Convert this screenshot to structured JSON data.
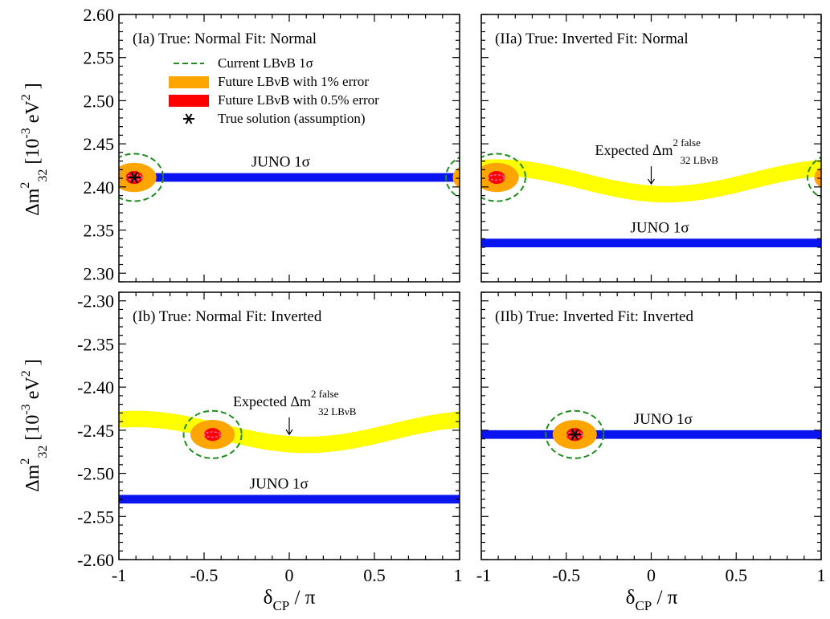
{
  "chart_data": {
    "type": "scatter",
    "x_axis": {
      "label_main": "δ",
      "label_sub": "CP",
      "label_tail": " / π",
      "range": [
        -1,
        1
      ],
      "ticks": [
        -1,
        -0.5,
        0,
        0.5,
        1
      ],
      "tick_labels_left": [
        "-1",
        "-0.5",
        "0",
        "0.5",
        "1"
      ],
      "tick_labels_right": [
        "-1",
        "-0.5",
        "0",
        "0.5",
        "1"
      ]
    },
    "y_axis_top": {
      "label_main": "Δm",
      "label_sup": "2",
      "label_sub": "32",
      "label_unit": " [10",
      "label_unit_sup": "-3",
      "label_unit_tail": " eV",
      "label_unit_sup2": "2",
      "label_close": " ]",
      "range": [
        2.29,
        2.6
      ],
      "ticks": [
        2.3,
        2.35,
        2.4,
        2.45,
        2.5,
        2.55,
        2.6
      ],
      "tick_labels": [
        "2.30",
        "2.35",
        "2.40",
        "2.45",
        "2.50",
        "2.55",
        "2.60"
      ]
    },
    "y_axis_bottom": {
      "label_main": "Δm",
      "label_sup": "2",
      "label_sub": "32",
      "label_unit": " [10",
      "label_unit_sup": "-3",
      "label_unit_tail": " eV",
      "label_unit_sup2": "2",
      "label_close": " ]",
      "range": [
        -2.6,
        -2.29
      ],
      "ticks": [
        -2.6,
        -2.55,
        -2.5,
        -2.45,
        -2.4,
        -2.35,
        -2.3
      ],
      "tick_labels": [
        "-2.60",
        "-2.55",
        "-2.50",
        "-2.45",
        "-2.40",
        "-2.35",
        "-2.30"
      ]
    },
    "legend": {
      "placement": "top-left of panel Ia",
      "items": [
        {
          "label": "Current LBνB 1σ",
          "style": "dashed-line",
          "color": "#1e8c1e"
        },
        {
          "label": "Future LBνB with 1% error",
          "style": "fill",
          "color": "#ffa500"
        },
        {
          "label": "Future LBνB with 0.5% error",
          "style": "fill",
          "color": "#ff0000"
        },
        {
          "label": "True solution (assumption)",
          "style": "asterisk",
          "color": "#000000"
        }
      ]
    },
    "colors": {
      "juno": "#0a14f0",
      "expected_false": "#ffff00",
      "current_1sigma": "#1e8c1e",
      "future_1pct": "#ffa500",
      "future_05pct": "#ff0000",
      "inner_dash": "#ff80c0"
    },
    "panels": [
      {
        "id": "Ia",
        "title": "(Ia) True: Normal  Fit: Normal",
        "juno_label": "JUNO 1σ",
        "juno_center": 2.411,
        "juno_halfwidth": 0.005,
        "true_point": [
          -0.91,
          2.411
        ],
        "show_true_marker": true,
        "ellipses": [
          {
            "x": -0.91,
            "y": 2.411,
            "rx": 0.05,
            "ry": 0.0075,
            "kind": "future_05pct"
          },
          {
            "x": -0.91,
            "y": 2.411,
            "rx": 0.13,
            "ry": 0.017,
            "kind": "future_1pct"
          },
          {
            "x": -0.91,
            "y": 2.411,
            "rx": 0.17,
            "ry": 0.0275,
            "kind": "current_1sigma"
          }
        ],
        "wrap_copy": true,
        "expected_band": null
      },
      {
        "id": "IIa",
        "title": "(IIa) True: Inverted  Fit: Normal",
        "juno_label": "JUNO 1σ",
        "juno_center": 2.335,
        "juno_halfwidth": 0.005,
        "true_point": [
          -0.91,
          2.411
        ],
        "show_true_marker": false,
        "ellipses": [
          {
            "x": -0.91,
            "y": 2.411,
            "rx": 0.05,
            "ry": 0.0075,
            "kind": "future_05pct"
          },
          {
            "x": -0.91,
            "y": 2.411,
            "rx": 0.13,
            "ry": 0.017,
            "kind": "future_1pct"
          },
          {
            "x": -0.91,
            "y": 2.411,
            "rx": 0.17,
            "ry": 0.0275,
            "kind": "current_1sigma"
          }
        ],
        "wrap_copy": true,
        "expected_band": {
          "mean": 2.407,
          "amplitude": 0.0155,
          "phase_x": -0.91,
          "halfwidth": 0.0095,
          "label_main": "Expected Δm",
          "label_sup": "2 false",
          "label_sub": "32 LBνB",
          "arrow_x": 0.0,
          "label_y": 2.437
        }
      },
      {
        "id": "Ib",
        "title": "(Ib) True: Normal  Fit: Inverted",
        "juno_label": "JUNO 1σ",
        "juno_center": -2.53,
        "juno_halfwidth": 0.005,
        "true_point": [
          -0.45,
          -2.455
        ],
        "show_true_marker": false,
        "ellipses": [
          {
            "x": -0.45,
            "y": -2.455,
            "rx": 0.05,
            "ry": 0.0075,
            "kind": "future_05pct"
          },
          {
            "x": -0.45,
            "y": -2.455,
            "rx": 0.13,
            "ry": 0.017,
            "kind": "future_1pct"
          },
          {
            "x": -0.45,
            "y": -2.455,
            "rx": 0.17,
            "ry": 0.0275,
            "kind": "current_1sigma"
          }
        ],
        "wrap_copy": false,
        "expected_band": {
          "mean": -2.452,
          "amplitude": 0.015,
          "phase_x": -0.9,
          "halfwidth": 0.0095,
          "label_main": "Expected Δm",
          "label_sup": "2 false",
          "label_sub": "32 LBνB",
          "arrow_x": 0.0,
          "label_y": -2.422
        }
      },
      {
        "id": "IIb",
        "title": "(IIb) True: Inverted  Fit: Inverted",
        "juno_label": "JUNO 1σ",
        "juno_center": -2.455,
        "juno_halfwidth": 0.005,
        "true_point": [
          -0.45,
          -2.455
        ],
        "show_true_marker": true,
        "ellipses": [
          {
            "x": -0.45,
            "y": -2.455,
            "rx": 0.05,
            "ry": 0.0075,
            "kind": "future_05pct"
          },
          {
            "x": -0.45,
            "y": -2.455,
            "rx": 0.13,
            "ry": 0.017,
            "kind": "future_1pct"
          },
          {
            "x": -0.45,
            "y": -2.455,
            "rx": 0.17,
            "ry": 0.0275,
            "kind": "current_1sigma"
          }
        ],
        "wrap_copy": false,
        "expected_band": null
      }
    ]
  }
}
